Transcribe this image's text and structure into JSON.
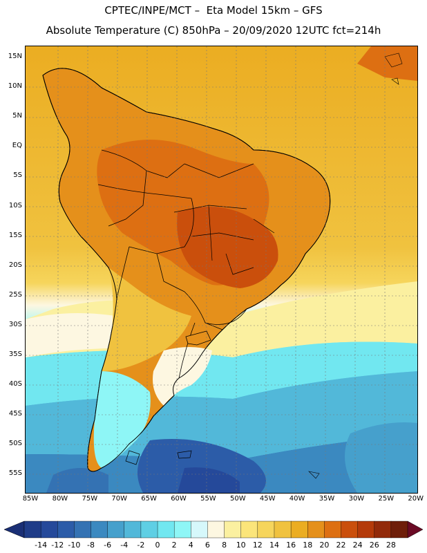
{
  "header": {
    "title_line1": "CPTEC/INPE/MCT –  Eta Model 15km – GFS",
    "title_line2": "Absolute Temperature (C) 850hPa – 20/09/2020 12UTC fct=214h"
  },
  "map": {
    "lat_labels": [
      "15N",
      "10N",
      "5N",
      "EQ",
      "5S",
      "10S",
      "15S",
      "20S",
      "25S",
      "30S",
      "35S",
      "40S",
      "45S",
      "50S",
      "55S"
    ],
    "lon_labels": [
      "85W",
      "80W",
      "75W",
      "70W",
      "65W",
      "60W",
      "55W",
      "50W",
      "45W",
      "40W",
      "35W",
      "30W",
      "25W",
      "20W"
    ]
  },
  "legend": {
    "tick_labels": [
      "-14",
      "-12",
      "-10",
      "-8",
      "-6",
      "-4",
      "-2",
      "0",
      "2",
      "4",
      "6",
      "8",
      "10",
      "12",
      "14",
      "16",
      "18",
      "20",
      "22",
      "24",
      "26",
      "28"
    ],
    "colors": [
      "#1f3c88",
      "#25499a",
      "#2c5ca8",
      "#3472b3",
      "#3b89c0",
      "#46a0cc",
      "#52b8d9",
      "#5fcfe4",
      "#71e7f0",
      "#8ef6f6",
      "#d6f8fb",
      "#fdf7e1",
      "#fbf0a0",
      "#fbe57a",
      "#f6d55c",
      "#f0c23f",
      "#ebad22",
      "#e5901b",
      "#dd6f12",
      "#ca4f0c",
      "#b43a0a",
      "#922a0a",
      "#6e1e09"
    ],
    "min_color": "#1a2f75",
    "max_color": "#6a0a24"
  }
}
